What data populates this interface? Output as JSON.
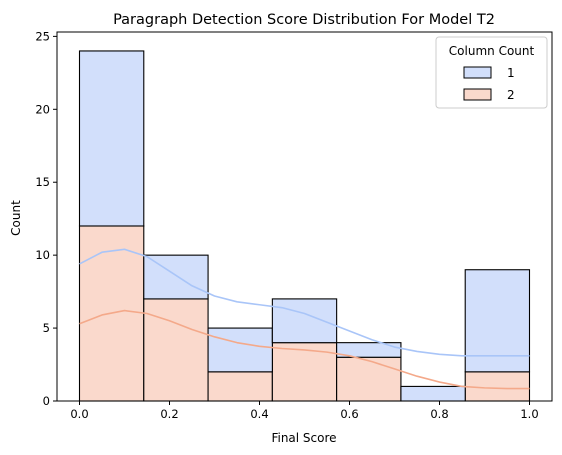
{
  "chart_data": {
    "type": "bar",
    "title": "Paragraph Detection Score Distribution For Model T2",
    "xlabel": "Final Score",
    "ylabel": "Count",
    "xlim": [
      -0.05,
      1.05
    ],
    "ylim": [
      0,
      25.3
    ],
    "xticks": [
      "0.0",
      "0.2",
      "0.4",
      "0.6",
      "0.8",
      "1.0"
    ],
    "xtick_values": [
      0.0,
      0.2,
      0.4,
      0.6,
      0.8,
      1.0
    ],
    "yticks": [
      "0",
      "5",
      "10",
      "15",
      "20",
      "25"
    ],
    "ytick_values": [
      0,
      5,
      10,
      15,
      20,
      25
    ],
    "bin_edges": [
      0.0,
      0.142857,
      0.285714,
      0.428571,
      0.571429,
      0.714286,
      0.857143,
      1.0
    ],
    "stacked": true,
    "series": [
      {
        "name": "2",
        "color": "#f4a98a",
        "fill": "#fad9cc",
        "values": [
          12,
          7,
          2,
          4,
          3,
          0,
          2
        ],
        "kde": [
          [
            0.0,
            5.3
          ],
          [
            0.05,
            5.9
          ],
          [
            0.1,
            6.2
          ],
          [
            0.15,
            6.0
          ],
          [
            0.2,
            5.5
          ],
          [
            0.25,
            4.9
          ],
          [
            0.3,
            4.4
          ],
          [
            0.35,
            4.0
          ],
          [
            0.4,
            3.75
          ],
          [
            0.45,
            3.6
          ],
          [
            0.5,
            3.5
          ],
          [
            0.55,
            3.35
          ],
          [
            0.6,
            3.1
          ],
          [
            0.65,
            2.7
          ],
          [
            0.7,
            2.2
          ],
          [
            0.75,
            1.7
          ],
          [
            0.8,
            1.3
          ],
          [
            0.85,
            1.0
          ],
          [
            0.9,
            0.9
          ],
          [
            0.95,
            0.85
          ],
          [
            1.0,
            0.85
          ]
        ]
      },
      {
        "name": "1",
        "color": "#a9c5f8",
        "fill": "#d2dffb",
        "values": [
          12,
          3,
          3,
          3,
          1,
          1,
          7
        ],
        "kde": [
          [
            0.0,
            9.4
          ],
          [
            0.05,
            10.2
          ],
          [
            0.1,
            10.4
          ],
          [
            0.15,
            9.9
          ],
          [
            0.2,
            8.9
          ],
          [
            0.25,
            7.9
          ],
          [
            0.3,
            7.2
          ],
          [
            0.35,
            6.8
          ],
          [
            0.4,
            6.6
          ],
          [
            0.45,
            6.4
          ],
          [
            0.5,
            6.0
          ],
          [
            0.55,
            5.4
          ],
          [
            0.6,
            4.8
          ],
          [
            0.65,
            4.2
          ],
          [
            0.7,
            3.7
          ],
          [
            0.75,
            3.4
          ],
          [
            0.8,
            3.2
          ],
          [
            0.85,
            3.1
          ],
          [
            0.9,
            3.1
          ],
          [
            0.95,
            3.1
          ],
          [
            1.0,
            3.1
          ]
        ]
      }
    ],
    "legend": {
      "title": "Column Count",
      "position": "top-right",
      "entries": [
        {
          "label": "1",
          "fill": "#d2dffb"
        },
        {
          "label": "2",
          "fill": "#fad9cc"
        }
      ]
    },
    "grid": false
  }
}
